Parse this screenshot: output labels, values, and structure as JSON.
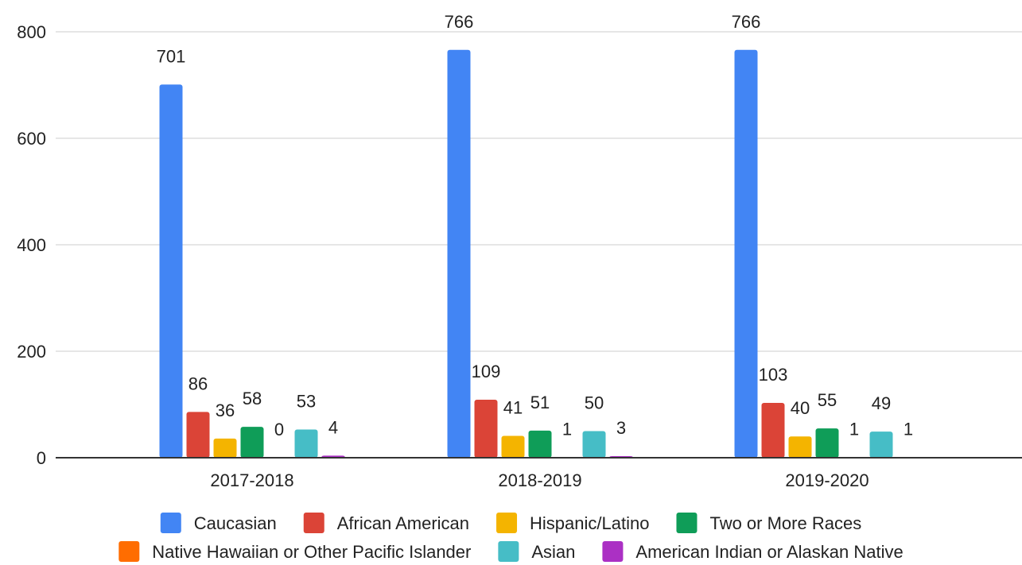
{
  "chart_data": {
    "type": "bar",
    "title": "",
    "xlabel": "",
    "ylabel": "",
    "categories": [
      "2017-2018",
      "2018-2019",
      "2019-2020"
    ],
    "ylim": [
      0,
      800
    ],
    "yticks": [
      0,
      200,
      400,
      600,
      800
    ],
    "grid": true,
    "legend_position": "bottom",
    "series": [
      {
        "name": "Caucasian",
        "color": "#4285f4",
        "values": [
          701,
          766,
          766
        ]
      },
      {
        "name": "African American",
        "color": "#db4437",
        "values": [
          86,
          109,
          103
        ]
      },
      {
        "name": "Hispanic/Latino",
        "color": "#f4b400",
        "values": [
          36,
          41,
          40
        ]
      },
      {
        "name": "Two or More Races",
        "color": "#0f9d58",
        "values": [
          58,
          51,
          55
        ]
      },
      {
        "name": "Native Hawaiian or Other Pacific Islander",
        "color": "#ff6d01",
        "values": [
          0,
          1,
          1
        ]
      },
      {
        "name": "Asian",
        "color": "#46bdc6",
        "values": [
          53,
          50,
          49
        ]
      },
      {
        "name": "American Indian or Alaskan Native",
        "color": "#ab30c4",
        "values": [
          4,
          3,
          1
        ]
      }
    ]
  }
}
